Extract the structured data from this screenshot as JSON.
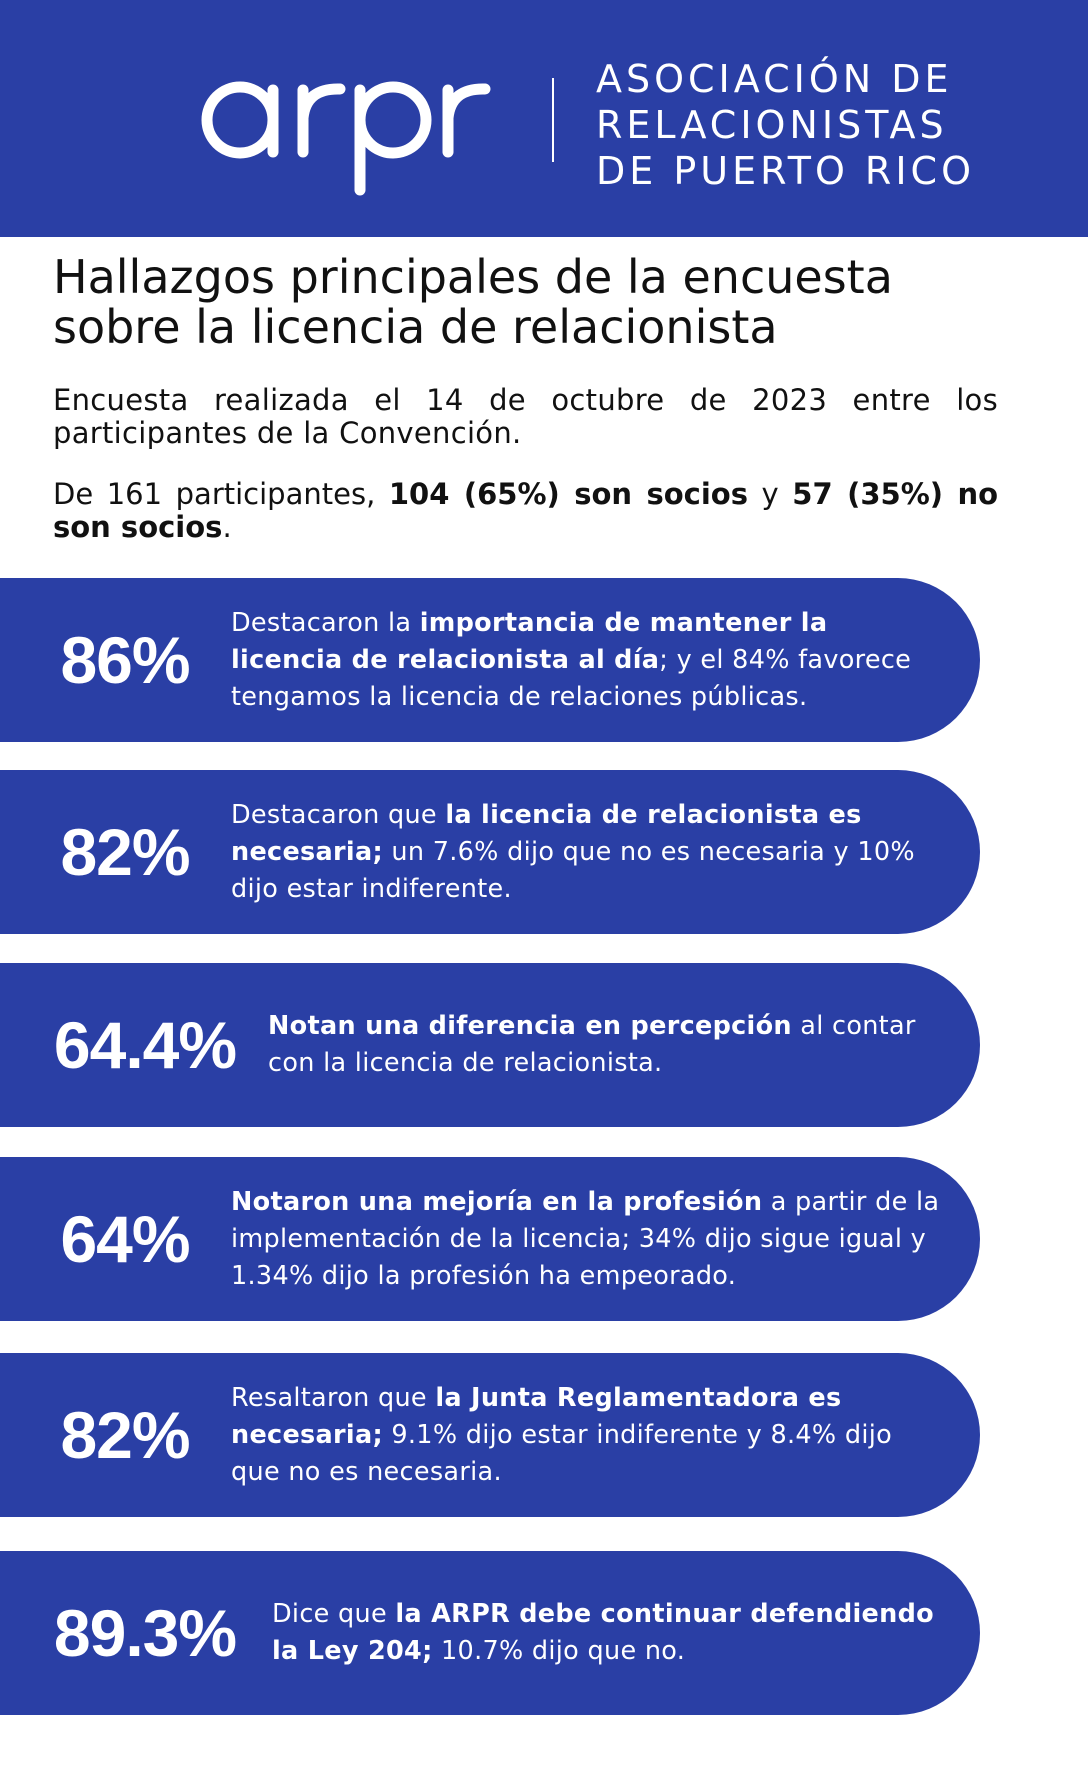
{
  "header": {
    "logo_text": "arpr",
    "org_lines": [
      "ASOCIACIÓN DE",
      "RELACIONISTAS",
      "DE PUERTO RICO"
    ]
  },
  "title_lines": [
    "Hallazgos principales de la encuesta",
    "sobre la licencia de relacionista"
  ],
  "intro": "Encuesta realizada el 14 de octubre de 2023 entre los participantes de la Convención.",
  "participants": {
    "lead": "De 161 participantes, ",
    "socios": "104 (65%) son socios",
    "and": " y ",
    "no_socios": "57 (35%) no son socios",
    "end": "."
  },
  "findings": [
    {
      "percent": "86%",
      "pre": "Destacaron la ",
      "bold": "importancia de mantener la licencia de relacionista al día",
      "post": "; y el 84% favorece tengamos la licencia de relaciones públicas."
    },
    {
      "percent": "82%",
      "pre": "Destacaron que ",
      "bold": "la licencia de relacionista es necesaria;",
      "post": " un 7.6% dijo que no es necesaria y 10% dijo estar indiferente."
    },
    {
      "percent": "64.4%",
      "pre": "",
      "bold": "Notan una diferencia en percepción",
      "post": " al contar con la licencia de relacionista."
    },
    {
      "percent": "64%",
      "pre": "",
      "bold": "Notaron una mejoría en la profesión",
      "post": " a partir de la implementación de la licencia; 34% dijo sigue igual y 1.34% dijo la profesión ha empeorado."
    },
    {
      "percent": "82%",
      "pre": "Resaltaron que ",
      "bold": "la Junta Reglamentadora es necesaria;",
      "post": " 9.1% dijo estar indiferente y 8.4% dijo que no es necesaria."
    },
    {
      "percent": "89.3%",
      "pre": "Dice  que ",
      "bold": "la ARPR debe continuar defendiendo la Ley 204;",
      "post": " 10.7% dijo que no."
    }
  ],
  "colors": {
    "brand_blue": "#2a3fa5",
    "text": "#111111",
    "on_brand": "#ffffff"
  }
}
